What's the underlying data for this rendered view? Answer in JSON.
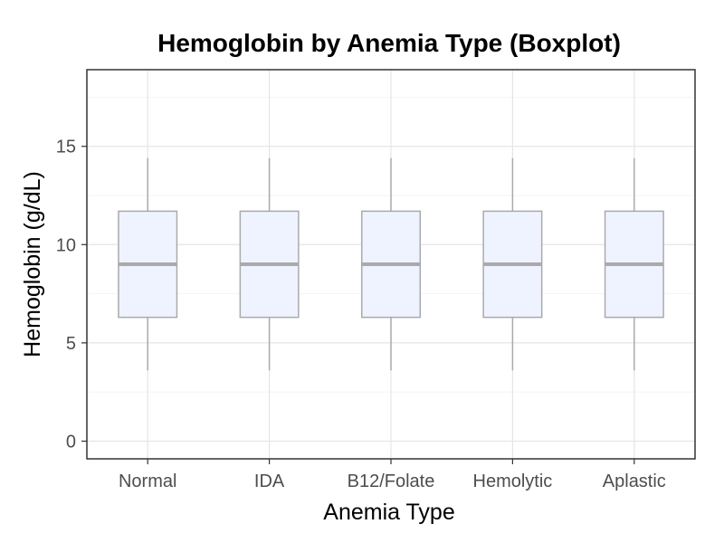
{
  "chart_data": {
    "type": "boxplot",
    "title": "Hemoglobin by Anemia Type (Boxplot)",
    "xlabel": "Anemia Type",
    "ylabel": "Hemoglobin (g/dL)",
    "categories": [
      "Normal",
      "IDA",
      "B12/Folate",
      "Hemolytic",
      "Aplastic"
    ],
    "ylim": [
      -0.9,
      18.9
    ],
    "yticks": [
      0,
      5,
      10,
      15
    ],
    "grid": true,
    "legend": "none",
    "box_fill": "#eef3ff",
    "box_stroke": "#aaaaaa",
    "boxes": [
      {
        "name": "Normal",
        "whisker_low": 3.6,
        "q1": 6.3,
        "median": 9.0,
        "q3": 11.7,
        "whisker_high": 14.4
      },
      {
        "name": "IDA",
        "whisker_low": 3.6,
        "q1": 6.3,
        "median": 9.0,
        "q3": 11.7,
        "whisker_high": 14.4
      },
      {
        "name": "B12/Folate",
        "whisker_low": 3.6,
        "q1": 6.3,
        "median": 9.0,
        "q3": 11.7,
        "whisker_high": 14.4
      },
      {
        "name": "Hemolytic",
        "whisker_low": 3.6,
        "q1": 6.3,
        "median": 9.0,
        "q3": 11.7,
        "whisker_high": 14.4
      },
      {
        "name": "Aplastic",
        "whisker_low": 3.6,
        "q1": 6.3,
        "median": 9.0,
        "q3": 11.7,
        "whisker_high": 14.4
      }
    ]
  }
}
